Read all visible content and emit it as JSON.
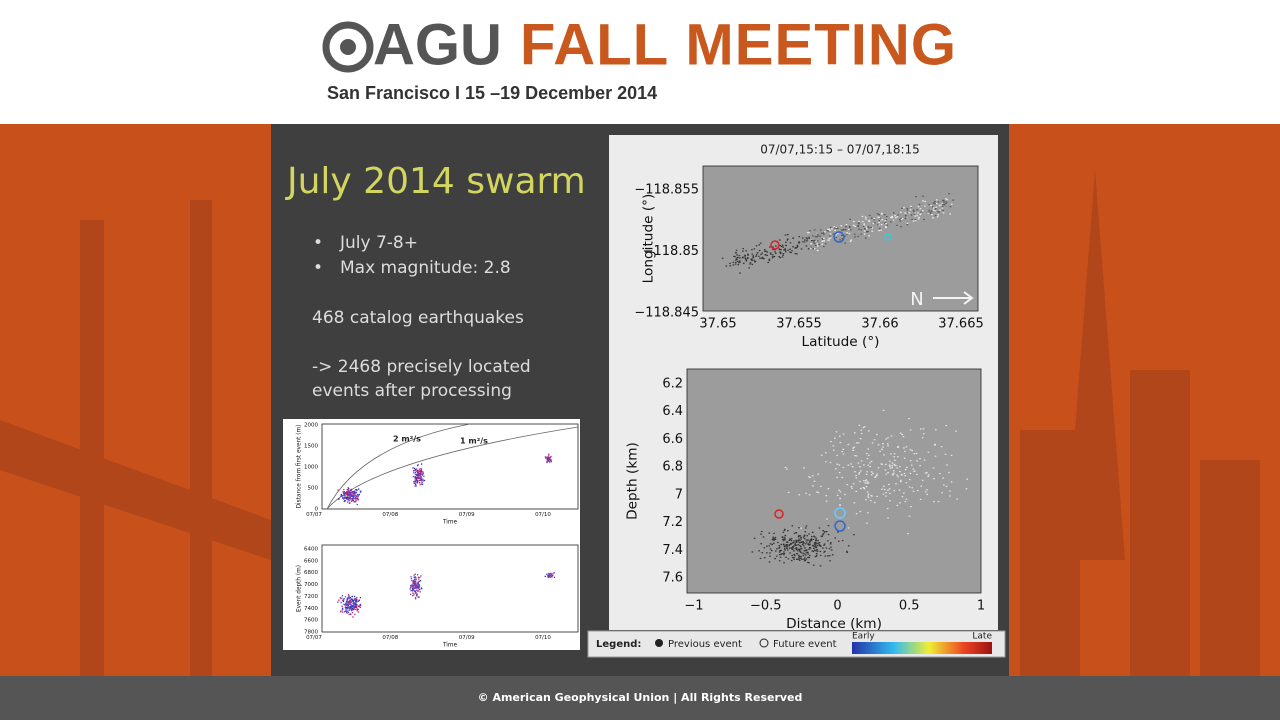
{
  "header": {
    "logo": "AGU",
    "title": "FALL MEETING",
    "subtitle": "San Francisco  I  15 –19 December 2014"
  },
  "slide": {
    "title": "July 2014 swarm",
    "bullets": [
      "July 7-8+",
      "Max magnitude: 2.8"
    ],
    "paragraphs": [
      "468 catalog earthquakes",
      "-> 2468 precisely located",
      "events after processing"
    ]
  },
  "left_figure": {
    "top": {
      "yticks": [
        "2000",
        "1500",
        "1000",
        "500",
        "0"
      ],
      "ylabel": "Distance from first event (m)",
      "xticks": [
        "07/07",
        "07/08",
        "07/09",
        "07/10"
      ],
      "xlabel": "Time",
      "annotations": [
        "2 m²/s",
        "1 m²/s"
      ]
    },
    "bottom": {
      "yticks": [
        "6400",
        "6600",
        "6800",
        "7000",
        "7200",
        "7400",
        "7600",
        "7800"
      ],
      "ylabel": "Event depth (m)",
      "xticks": [
        "07/07",
        "07/08",
        "07/09",
        "07/10"
      ],
      "xlabel": "Time"
    }
  },
  "right_figure": {
    "title": "07/07,15:15 – 07/07,18:15",
    "map": {
      "yticks": [
        "−118.855",
        "−118.85",
        "−118.845"
      ],
      "ylabel": "Longitude (°)",
      "xticks": [
        "37.65",
        "37.655",
        "37.66",
        "37.665"
      ],
      "xlabel": "Latitude (°)",
      "north": "N"
    },
    "section": {
      "yticks": [
        "6.2",
        "6.4",
        "6.6",
        "6.8",
        "7",
        "7.2",
        "7.4",
        "7.6"
      ],
      "ylabel": "Depth (km)",
      "xticks": [
        "−1",
        "−0.5",
        "0",
        "0.5",
        "1"
      ],
      "xlabel": "Distance (km)"
    }
  },
  "legend": {
    "label": "Legend:",
    "previous": "Previous event",
    "future": "Future event",
    "early": "Early",
    "late": "Late"
  },
  "footer": "© American Geophysical Union | All Rights Reserved"
}
